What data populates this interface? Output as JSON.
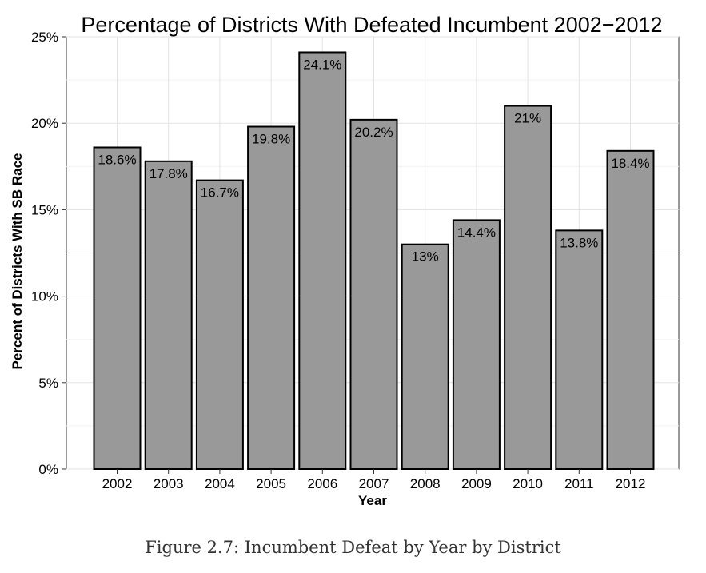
{
  "chart_data": {
    "type": "bar",
    "title": "Percentage of Districts With Defeated Incumbent 2002−2012",
    "xlabel": "Year",
    "ylabel": "Percent of Districts With SB Race",
    "categories": [
      "2002",
      "2003",
      "2004",
      "2005",
      "2006",
      "2007",
      "2008",
      "2009",
      "2010",
      "2011",
      "2012"
    ],
    "values": [
      18.6,
      17.8,
      16.7,
      19.8,
      24.1,
      20.2,
      13.0,
      14.4,
      21.0,
      13.8,
      18.4
    ],
    "data_labels": [
      "18.6%",
      "17.8%",
      "16.7%",
      "19.8%",
      "24.1%",
      "20.2%",
      "13%",
      "14.4%",
      "21%",
      "13.8%",
      "18.4%"
    ],
    "ylim": [
      0,
      25
    ],
    "yticks": [
      0,
      5,
      10,
      15,
      20,
      25
    ],
    "ytick_labels": [
      "0%",
      "5%",
      "10%",
      "15%",
      "20%",
      "25%"
    ],
    "grid": true,
    "bar_color": "#999999",
    "bar_edge_color": "#000000"
  },
  "caption": "Figure 2.7: Incumbent Defeat by Year by District"
}
